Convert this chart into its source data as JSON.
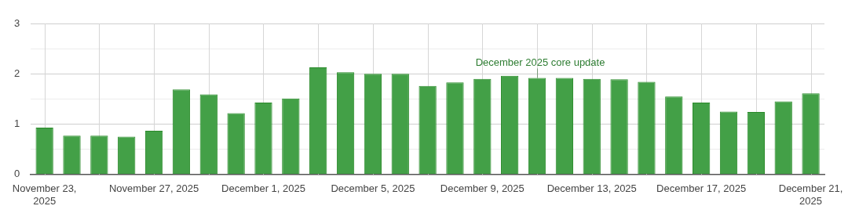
{
  "chart_data": {
    "type": "bar",
    "x": [
      "2025-11-23",
      "2025-11-24",
      "2025-11-25",
      "2025-11-26",
      "2025-11-27",
      "2025-11-28",
      "2025-11-29",
      "2025-11-30",
      "2025-12-01",
      "2025-12-02",
      "2025-12-03",
      "2025-12-04",
      "2025-12-05",
      "2025-12-06",
      "2025-12-07",
      "2025-12-08",
      "2025-12-09",
      "2025-12-10",
      "2025-12-11",
      "2025-12-12",
      "2025-12-13",
      "2025-12-14",
      "2025-12-15",
      "2025-12-16",
      "2025-12-17",
      "2025-12-18",
      "2025-12-19",
      "2025-12-20",
      "2025-12-21"
    ],
    "values": [
      0.93,
      0.77,
      0.77,
      0.75,
      0.87,
      1.69,
      1.59,
      1.22,
      1.43,
      1.51,
      2.13,
      2.03,
      2.0,
      2.0,
      1.76,
      1.83,
      1.9,
      1.96,
      1.92,
      1.92,
      1.9,
      1.89,
      1.84,
      1.55,
      1.43,
      1.25,
      1.24,
      1.45,
      1.61
    ],
    "color": "#43a047",
    "xlim": [
      "2025-11-22T12:00",
      "2025-12-21T12:00"
    ],
    "ylim": [
      0,
      3
    ],
    "yticks": [
      0,
      {
        "value": 0.5,
        "label": null
      },
      1,
      {
        "value": 1.5,
        "label": null
      },
      2,
      {
        "value": 2.5,
        "label": null
      },
      3
    ],
    "xticks": [
      {
        "value": "2025-11-23",
        "label": "November 23, 2025"
      },
      {
        "value": "2025-11-25",
        "label": null
      },
      {
        "value": "2025-11-27",
        "label": "November 27, 2025"
      },
      {
        "value": "2025-11-29",
        "label": null
      },
      {
        "value": "2025-12-01",
        "label": "December 1, 2025"
      },
      {
        "value": "2025-12-03",
        "label": null
      },
      {
        "value": "2025-12-05",
        "label": "December 5, 2025"
      },
      {
        "value": "2025-12-07",
        "label": null
      },
      {
        "value": "2025-12-09",
        "label": "December 9, 2025"
      },
      {
        "value": "2025-12-11",
        "label": null
      },
      {
        "value": "2025-12-13",
        "label": "December 13, 2025"
      },
      {
        "value": "2025-12-15",
        "label": null
      },
      {
        "value": "2025-12-17",
        "label": "December 17, 2025"
      },
      {
        "value": "2025-12-19",
        "label": null
      },
      {
        "value": "2025-12-21",
        "label": "December 21, 2025"
      }
    ],
    "grid": true,
    "annotations": [
      {
        "text": "December 2025 core update",
        "x": "2025-12-11",
        "y": 1.92
      }
    ]
  }
}
